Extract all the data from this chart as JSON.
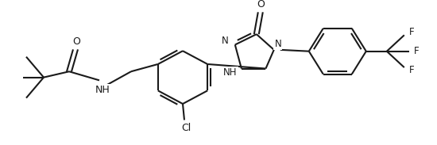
{
  "background_color": "#ffffff",
  "line_color": "#1a1a1a",
  "line_width": 1.5,
  "figsize": [
    5.5,
    1.83
  ],
  "dpi": 100,
  "xlim": [
    0,
    550
  ],
  "ylim": [
    0,
    183
  ]
}
